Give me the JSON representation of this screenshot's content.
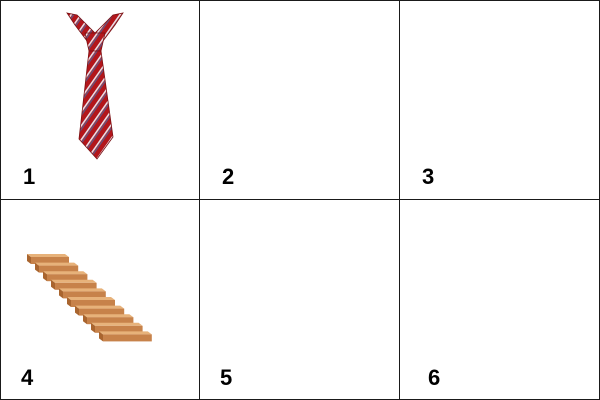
{
  "cells": [
    {
      "label": "1",
      "content": "necktie-image"
    },
    {
      "label": "2",
      "content": ""
    },
    {
      "label": "3",
      "content": ""
    },
    {
      "label": "4",
      "content": "staircase-image"
    },
    {
      "label": "5",
      "content": ""
    },
    {
      "label": "6",
      "content": ""
    }
  ]
}
